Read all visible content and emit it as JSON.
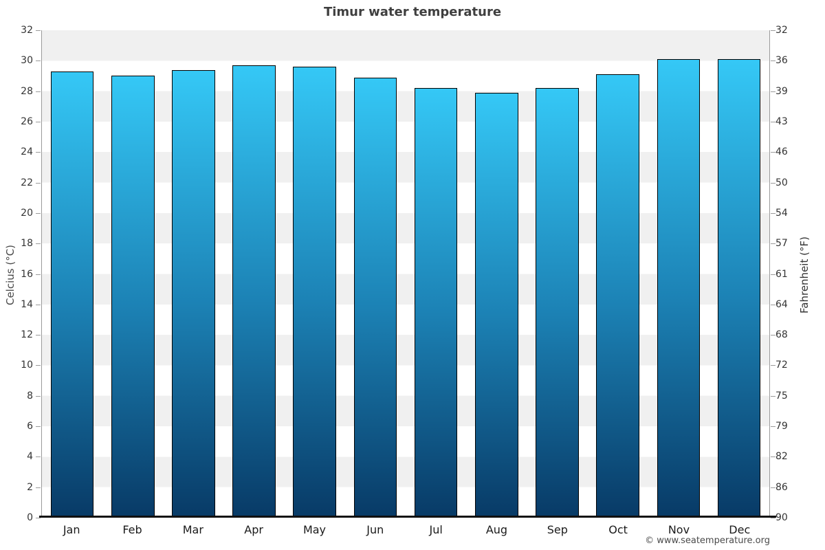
{
  "title": "Timur water temperature",
  "footer": "© www.seatemperature.org",
  "axes": {
    "left_label": "Celcius (°C)",
    "right_label": "Fahrenheit (°F)"
  },
  "chart_data": {
    "type": "bar",
    "title": "Timur water temperature",
    "categories": [
      "Jan",
      "Feb",
      "Mar",
      "Apr",
      "May",
      "Jun",
      "Jul",
      "Aug",
      "Sep",
      "Oct",
      "Nov",
      "Dec"
    ],
    "values": [
      29.3,
      29.0,
      29.4,
      29.7,
      29.6,
      28.9,
      28.2,
      27.9,
      28.2,
      29.1,
      30.1,
      30.1
    ],
    "xlabel": "",
    "ylabel": "Celcius (°C)",
    "ylabel_right": "Fahrenheit (°F)",
    "ylim": [
      0,
      32
    ],
    "yticks_celsius": [
      32,
      30,
      28,
      26,
      24,
      22,
      20,
      18,
      16,
      14,
      12,
      10,
      8,
      6,
      4,
      2,
      0
    ],
    "yticks_fahrenheit": [
      90,
      86,
      82,
      79,
      75,
      72,
      68,
      64,
      61,
      57,
      54,
      50,
      46,
      43,
      39,
      36,
      32
    ],
    "grid": "alternating 2-degree horizontal bands, gray and white",
    "legend": "none",
    "bar_color_top": "#35c8f6",
    "bar_color_bottom": "#083a66"
  },
  "style": {
    "band_color": "#f0f0f0",
    "axis_line_color": "#9a9a9a",
    "baseline_color": "#111111",
    "bar_border_color": "#000000",
    "title_color": "#3f3f3f",
    "tick_label_color": "#333333",
    "month_label_color": "#1a1a1a",
    "footer_color": "#4a4a4a"
  }
}
